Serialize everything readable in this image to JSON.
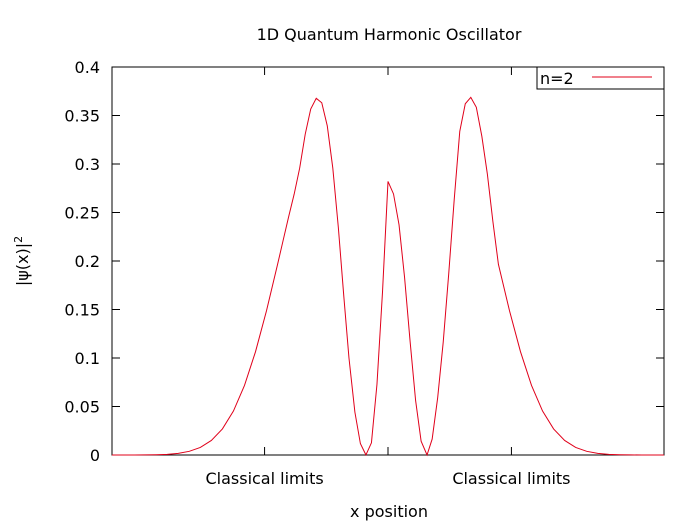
{
  "chart_data": {
    "type": "line",
    "title": "1D Quantum Harmonic Oscillator",
    "xlabel": "x position",
    "ylabel": "|ψ(x)|²",
    "xlim": [
      -5,
      5
    ],
    "ylim": [
      0,
      0.4
    ],
    "yticks": [
      0,
      0.05,
      0.1,
      0.15,
      0.2,
      0.25,
      0.3,
      0.35,
      0.4
    ],
    "ytick_labels": [
      "0",
      "0.05",
      "0.1",
      "0.15",
      "0.2",
      "0.25",
      "0.3",
      "0.35",
      "0.4"
    ],
    "xticks": [
      {
        "x": -2.236,
        "label": "Classical limits"
      },
      {
        "x": 0,
        "label": ""
      },
      {
        "x": 2.236,
        "label": "Classical limits"
      }
    ],
    "grid": false,
    "legend": {
      "position": "top-right"
    },
    "series": [
      {
        "name": "n=2",
        "color": "#e0001a",
        "x": [
          -5,
          -4.8,
          -4.6,
          -4.4,
          -4.2,
          -4,
          -3.8,
          -3.6,
          -3.4,
          -3.2,
          -3,
          -2.8,
          -2.6,
          -2.4,
          -2.2,
          -2,
          -1.9,
          -1.8,
          -1.7,
          -1.6,
          -1.5,
          -1.4,
          -1.3,
          -1.2,
          -1.1,
          -1,
          -0.9,
          -0.8,
          -0.707,
          -0.6,
          -0.5,
          -0.4,
          -0.3,
          -0.2,
          -0.1,
          0,
          0.1,
          0.2,
          0.3,
          0.4,
          0.5,
          0.6,
          0.707,
          0.8,
          0.9,
          1,
          1.1,
          1.2,
          1.3,
          1.4,
          1.5,
          1.6,
          1.7,
          1.8,
          1.9,
          2,
          2.2,
          2.4,
          2.6,
          2.8,
          3,
          3.2,
          3.4,
          3.6,
          3.8,
          4,
          4.2,
          4.4,
          4.6,
          4.8,
          5
        ],
        "y": [
          0.0,
          0.0,
          0.0,
          0.0001,
          0.0003,
          0.0007,
          0.0017,
          0.0038,
          0.0078,
          0.015,
          0.0269,
          0.0453,
          0.0717,
          0.1065,
          0.149,
          0.1966,
          0.2212,
          0.2456,
          0.2689,
          0.2958,
          0.3306,
          0.3567,
          0.3677,
          0.3631,
          0.3393,
          0.2958,
          0.2348,
          0.1632,
          0.1,
          0.0443,
          0.0117,
          0.0001,
          0.0126,
          0.0728,
          0.1676,
          0.282,
          0.2691,
          0.2373,
          0.1832,
          0.1173,
          0.0562,
          0.0142,
          0.0,
          0.0164,
          0.0591,
          0.1162,
          0.1868,
          0.2637,
          0.3336,
          0.3621,
          0.3687,
          0.3585,
          0.3286,
          0.2896,
          0.2408,
          0.1966,
          0.149,
          0.1065,
          0.0717,
          0.0453,
          0.0269,
          0.015,
          0.0078,
          0.0038,
          0.0017,
          0.0007,
          0.0003,
          0.0001,
          0.0,
          0.0,
          0.0
        ]
      }
    ]
  }
}
